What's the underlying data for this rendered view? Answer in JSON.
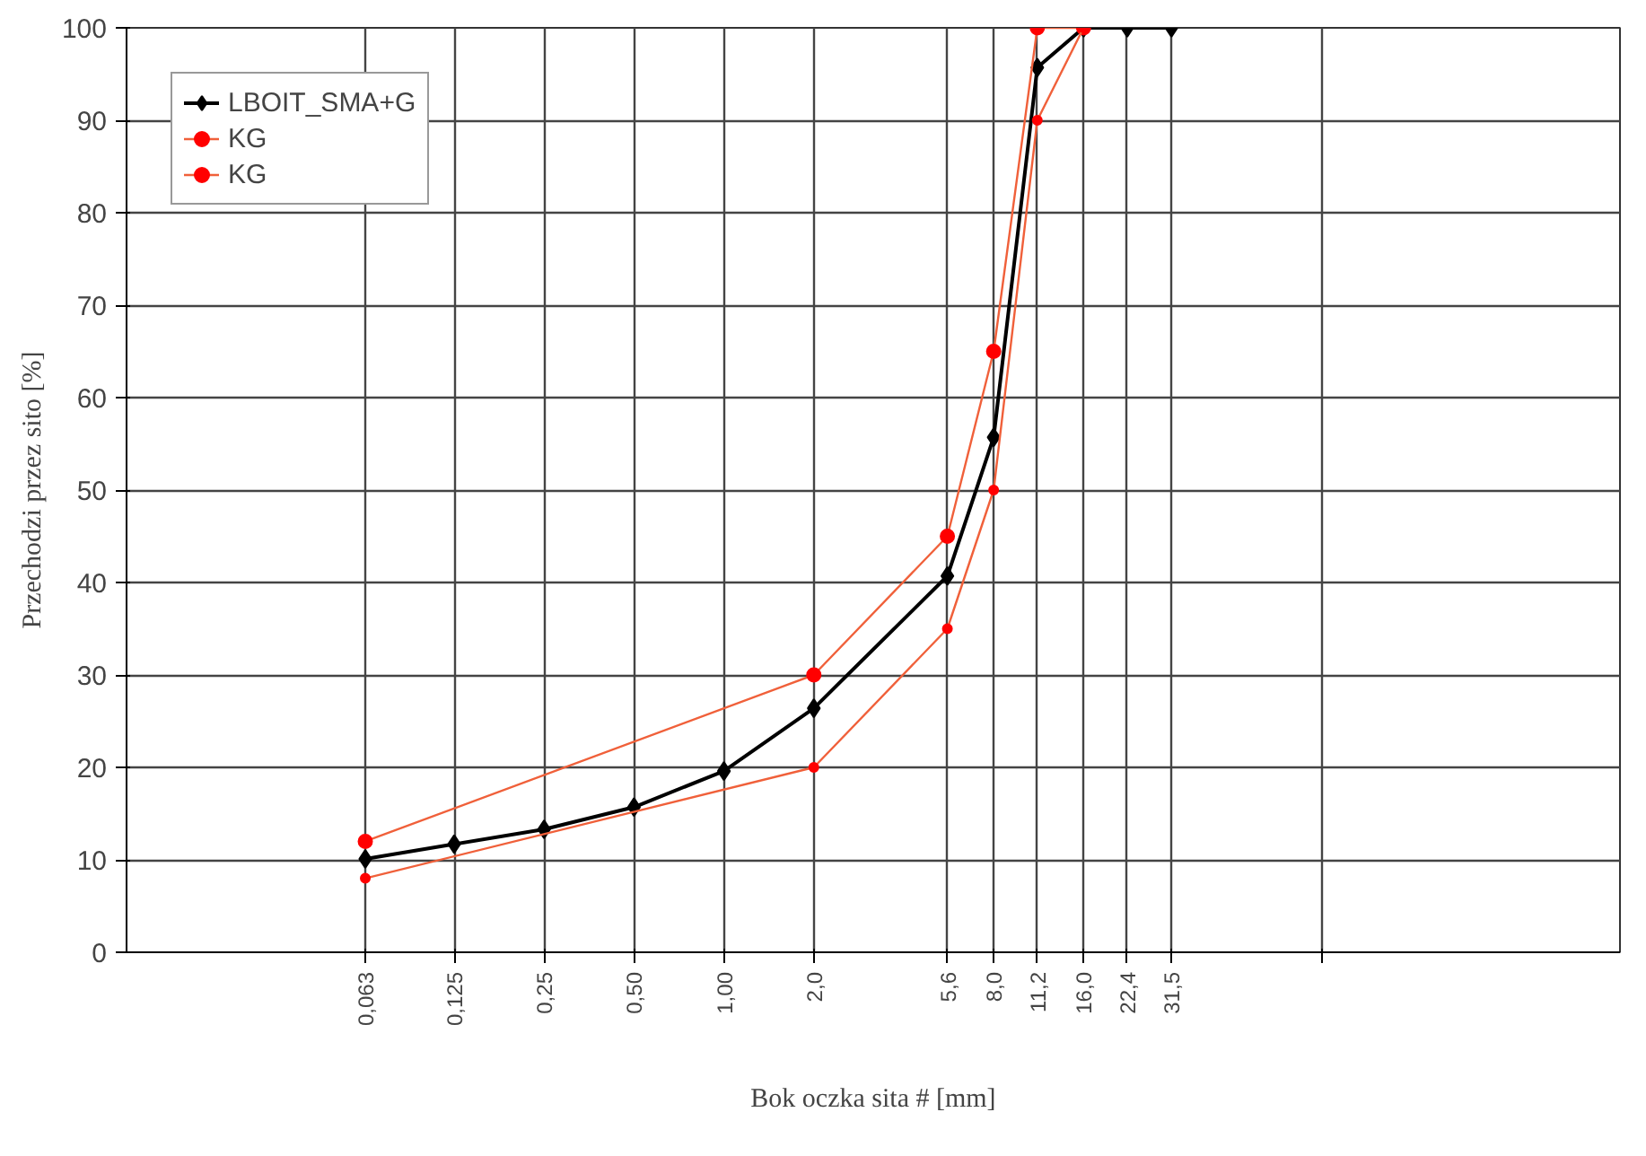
{
  "chart_data": {
    "type": "line",
    "xlabel": "Bok oczka sita # [mm]",
    "ylabel": "Przechodzi przez sito [%]",
    "log": "x",
    "xlim": [
      0.01,
      1000
    ],
    "ylim": [
      0,
      100
    ],
    "xticks": [
      {
        "value": 0.063,
        "label": "0,063"
      },
      {
        "value": 0.125,
        "label": "0,125"
      },
      {
        "value": 0.25,
        "label": "0,25"
      },
      {
        "value": 0.5,
        "label": "0,50"
      },
      {
        "value": 1,
        "label": "1,00"
      },
      {
        "value": 2,
        "label": "2,0"
      },
      {
        "value": 5.6,
        "label": "5,6"
      },
      {
        "value": 8,
        "label": "8,0"
      },
      {
        "value": 11.2,
        "label": "11,2"
      },
      {
        "value": 16,
        "label": "16,0"
      },
      {
        "value": 22.4,
        "label": "22,4"
      },
      {
        "value": 31.5,
        "label": "31,5"
      },
      {
        "value": 100,
        "label": null
      }
    ],
    "yticks": [
      0,
      10,
      20,
      30,
      40,
      50,
      60,
      70,
      80,
      90,
      100
    ],
    "grid": true,
    "legend": "top left",
    "line_style": "solid",
    "series": [
      {
        "name": "LBOIT_SMA+G",
        "color": "#000000",
        "marker": "diamond",
        "x": [
          0.063,
          0.125,
          0.25,
          0.5,
          1,
          2,
          5.6,
          8,
          11.2,
          16,
          22.4,
          31.5
        ],
        "values": [
          10.1,
          11.7,
          13.3,
          15.7,
          19.6,
          26.4,
          40.7,
          55.7,
          95.7,
          100,
          100,
          100
        ]
      },
      {
        "name": "KG",
        "color": "#f0603a",
        "marker": "circle",
        "x": [
          0.063,
          2,
          5.6,
          8,
          11.2,
          16
        ],
        "values": [
          12,
          30,
          45,
          65,
          100,
          100
        ]
      },
      {
        "name": "KG",
        "color": "#f0603a",
        "marker": "circle",
        "x": [
          0.063,
          2,
          5.6,
          8,
          11.2,
          16
        ],
        "values": [
          8,
          20,
          35,
          50,
          90,
          100
        ]
      }
    ]
  }
}
